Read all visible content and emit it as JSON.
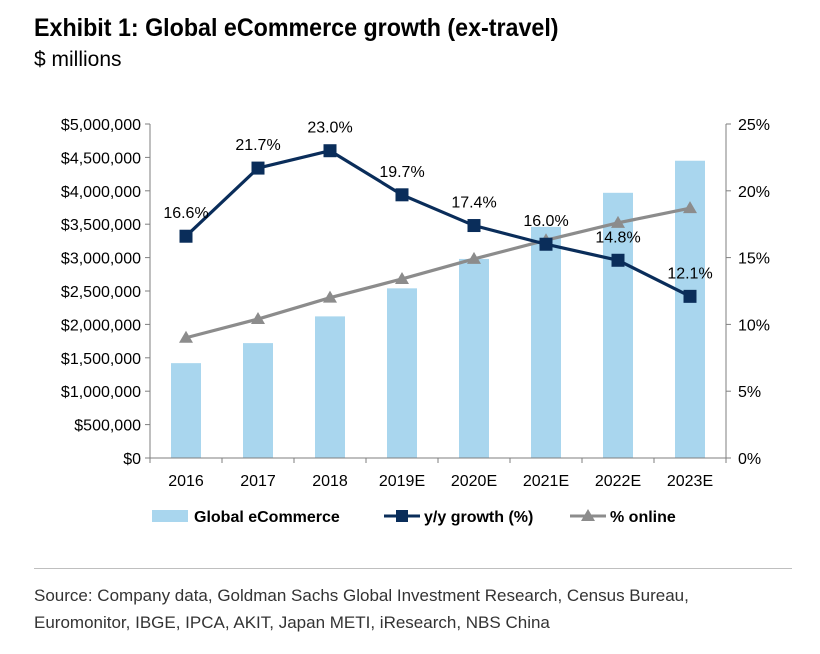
{
  "header": {
    "title": "Exhibit 1: Global eCommerce growth (ex-travel)",
    "subtitle": "$ millions"
  },
  "source": {
    "line1": "Source: Company data, Goldman Sachs Global Investment Research, Census Bureau,",
    "line2": "Euromonitor, IBGE, IPCA, AKIT, Japan METI, iResearch, NBS China"
  },
  "colors": {
    "bar": "#a9d6ee",
    "growth_line": "#0a2d5a",
    "online_line": "#8c8c8c",
    "axis": "#7f7f7f"
  },
  "chart_data": {
    "type": "bar",
    "categories": [
      "2016",
      "2017",
      "2018",
      "2019E",
      "2020E",
      "2021E",
      "2022E",
      "2023E"
    ],
    "series": [
      {
        "name": "Global eCommerce",
        "type": "bar",
        "axis": "left",
        "values": [
          1420000,
          1720000,
          2120000,
          2540000,
          2980000,
          3460000,
          3970000,
          4450000
        ]
      },
      {
        "name": "y/y growth (%)",
        "type": "line",
        "marker": "square",
        "axis": "right",
        "values": [
          16.6,
          21.7,
          23.0,
          19.7,
          17.4,
          16.0,
          14.8,
          12.1
        ],
        "labels": [
          "16.6%",
          "21.7%",
          "23.0%",
          "19.7%",
          "17.4%",
          "16.0%",
          "14.8%",
          "12.1%"
        ]
      },
      {
        "name": "% online",
        "type": "line",
        "marker": "triangle",
        "axis": "right",
        "values": [
          9.0,
          10.4,
          12.0,
          13.4,
          14.9,
          16.3,
          17.6,
          18.7
        ]
      }
    ],
    "y_left": {
      "min": 0,
      "max": 5000000,
      "step": 500000,
      "tick_labels": [
        "$0",
        "$500,000",
        "$1,000,000",
        "$1,500,000",
        "$2,000,000",
        "$2,500,000",
        "$3,000,000",
        "$3,500,000",
        "$4,000,000",
        "$4,500,000",
        "$5,000,000"
      ]
    },
    "y_right": {
      "min": 0,
      "max": 25,
      "step": 5,
      "tick_labels": [
        "0%",
        "5%",
        "10%",
        "15%",
        "20%",
        "25%"
      ]
    },
    "legend": [
      "Global eCommerce",
      "y/y growth (%)",
      "% online"
    ],
    "legend_position": "bottom"
  }
}
